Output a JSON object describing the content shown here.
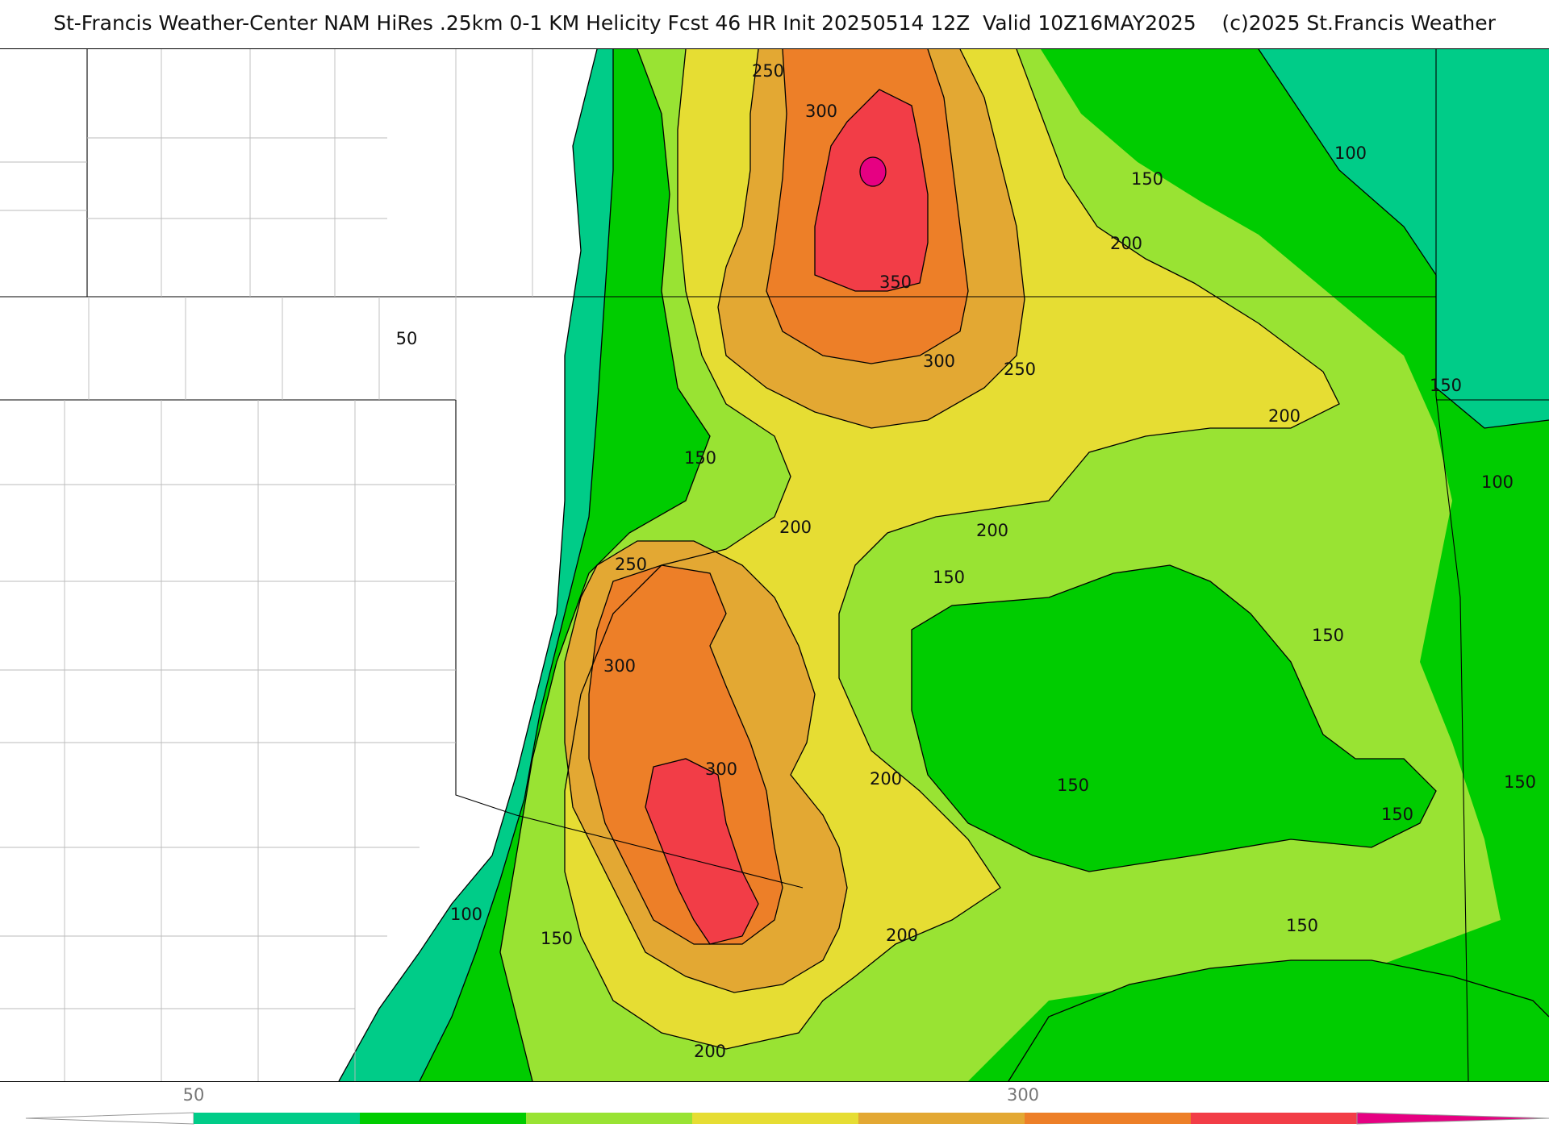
{
  "title": "St-Francis Weather-Center NAM HiRes .25km 0-1 KM Helicity Fcst 46 HR Init 20250514 12Z  Valid 10Z16MAY2025    (c)2025 St.Francis Weather",
  "contour_labels": [
    "50",
    "100",
    "150",
    "200",
    "250",
    "300",
    "350"
  ],
  "map_labels": [
    {
      "text": "250",
      "lvl": 250
    },
    {
      "text": "300",
      "lvl": 300
    },
    {
      "text": "350",
      "lvl": 350
    },
    {
      "text": "300",
      "lvl": 300
    },
    {
      "text": "250",
      "lvl": 250
    },
    {
      "text": "200",
      "lvl": 200
    },
    {
      "text": "150",
      "lvl": 150
    },
    {
      "text": "100",
      "lvl": 100
    },
    {
      "text": "50",
      "lvl": 50
    },
    {
      "text": "150",
      "lvl": 150
    },
    {
      "text": "200",
      "lvl": 200
    },
    {
      "text": "200",
      "lvl": 200
    },
    {
      "text": "150",
      "lvl": 150
    },
    {
      "text": "200",
      "lvl": 200
    },
    {
      "text": "100",
      "lvl": 100
    },
    {
      "text": "150",
      "lvl": 150
    },
    {
      "text": "250",
      "lvl": 250
    },
    {
      "text": "300",
      "lvl": 300
    },
    {
      "text": "300",
      "lvl": 300
    },
    {
      "text": "200",
      "lvl": 200
    },
    {
      "text": "150",
      "lvl": 150
    },
    {
      "text": "150",
      "lvl": 150
    },
    {
      "text": "150",
      "lvl": 150
    },
    {
      "text": "150",
      "lvl": 150
    },
    {
      "text": "100",
      "lvl": 100
    },
    {
      "text": "150",
      "lvl": 150
    },
    {
      "text": "200",
      "lvl": 200
    },
    {
      "text": "200",
      "lvl": 200
    },
    {
      "text": "150",
      "lvl": 150
    }
  ],
  "legend": {
    "tick_labels": [
      "50",
      "300"
    ],
    "levels": [
      50,
      100,
      150,
      200,
      250,
      300,
      350,
      400
    ],
    "colors": [
      "#00cc88",
      "#00cc00",
      "#99e333",
      "#e6dd33",
      "#e3a833",
      "#ed7f28",
      "#f23d47",
      "#e60082"
    ]
  }
}
